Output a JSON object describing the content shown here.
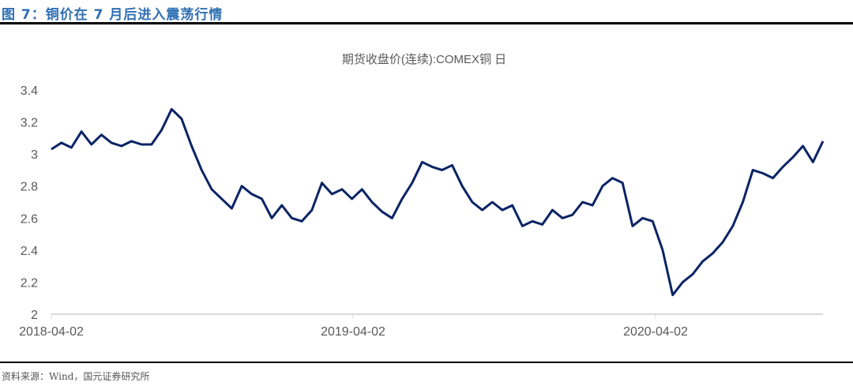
{
  "figure": {
    "title": "图 7：铜价在 7 月后进入震荡行情",
    "source": "资料来源：Wind，国元证券研究所"
  },
  "chart_data": {
    "type": "line",
    "title": "期货收盘价(连续):COMEX铜 日",
    "xlabel": "",
    "ylabel": "",
    "ylim": [
      2,
      3.4
    ],
    "yticks": [
      "3.4",
      "3.2",
      "3",
      "2.8",
      "2.6",
      "2.4",
      "2.2",
      "2"
    ],
    "xticks": [
      "2018-04-02",
      "2019-04-02",
      "2020-04-02"
    ],
    "grid": false,
    "legend": "none",
    "line_color": "#0b2466",
    "series": [
      {
        "name": "期货收盘价(连续):COMEX铜",
        "x": [
          "2018-04",
          "2018-04",
          "2018-05",
          "2018-05",
          "2018-05",
          "2018-06",
          "2018-06",
          "2018-06",
          "2018-06",
          "2018-07",
          "2018-07",
          "2018-07",
          "2018-07",
          "2018-08",
          "2018-08",
          "2018-08",
          "2018-09",
          "2018-09",
          "2018-09",
          "2018-10",
          "2018-10",
          "2018-11",
          "2018-11",
          "2018-12",
          "2018-12",
          "2019-01",
          "2019-01",
          "2019-02",
          "2019-02",
          "2019-03",
          "2019-03",
          "2019-04",
          "2019-04",
          "2019-05",
          "2019-05",
          "2019-05",
          "2019-06",
          "2019-06",
          "2019-07",
          "2019-07",
          "2019-08",
          "2019-08",
          "2019-09",
          "2019-09",
          "2019-10",
          "2019-10",
          "2019-11",
          "2019-11",
          "2019-12",
          "2019-12",
          "2020-01",
          "2020-01",
          "2020-01",
          "2020-02",
          "2020-02",
          "2020-03",
          "2020-03",
          "2020-03",
          "2020-04",
          "2020-04",
          "2020-05",
          "2020-05",
          "2020-06",
          "2020-06",
          "2020-07",
          "2020-07",
          "2020-07",
          "2020-08",
          "2020-08",
          "2020-09",
          "2020-09",
          "2020-10",
          "2020-10",
          "2020-11",
          "2020-11",
          "2020-12",
          "2020-12",
          "2021-01"
        ],
        "values": [
          3.03,
          3.07,
          3.04,
          3.14,
          3.06,
          3.12,
          3.07,
          3.05,
          3.08,
          3.06,
          3.06,
          3.15,
          3.28,
          3.22,
          3.05,
          2.9,
          2.78,
          2.72,
          2.66,
          2.8,
          2.75,
          2.72,
          2.6,
          2.68,
          2.6,
          2.58,
          2.65,
          2.82,
          2.75,
          2.78,
          2.72,
          2.78,
          2.7,
          2.64,
          2.6,
          2.72,
          2.82,
          2.95,
          2.92,
          2.9,
          2.93,
          2.8,
          2.7,
          2.65,
          2.7,
          2.65,
          2.68,
          2.55,
          2.58,
          2.56,
          2.65,
          2.6,
          2.62,
          2.7,
          2.68,
          2.8,
          2.85,
          2.82,
          2.55,
          2.6,
          2.58,
          2.4,
          2.12,
          2.2,
          2.25,
          2.33,
          2.38,
          2.45,
          2.55,
          2.7,
          2.9,
          2.88,
          2.85,
          2.92,
          2.98,
          3.05,
          2.95,
          3.08
        ]
      }
    ]
  }
}
